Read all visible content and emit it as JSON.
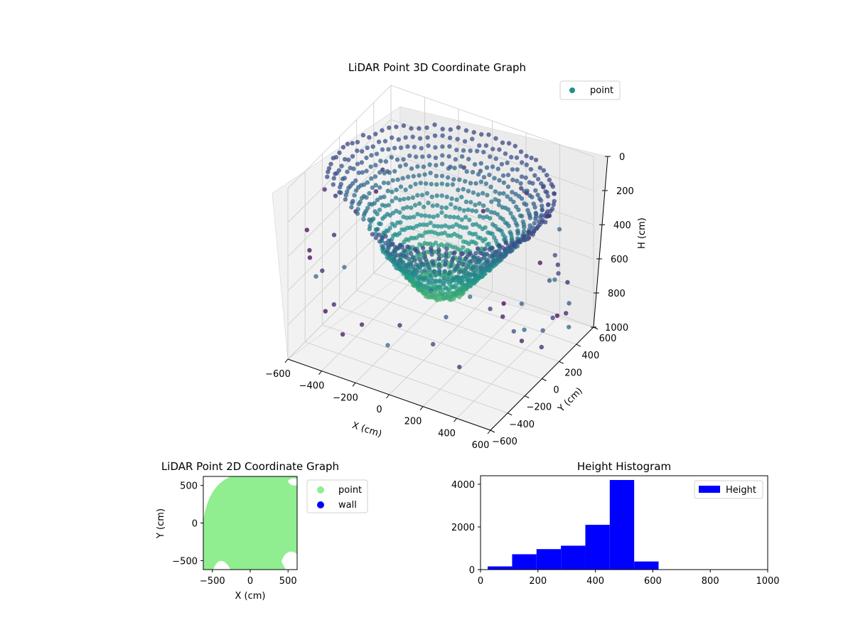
{
  "chart_data": [
    {
      "type": "scatter",
      "title": "LiDAR Point 3D Coordinate Graph",
      "xlabel": "X (cm)",
      "ylabel": "Y (cm)",
      "zlabel": "H (cm)",
      "xlim": [
        -600,
        600
      ],
      "ylim": [
        -600,
        600
      ],
      "zlim": [
        1000,
        0
      ],
      "x_ticks": [
        "−600",
        "−400",
        "−200",
        "0",
        "200",
        "400",
        "600"
      ],
      "y_ticks": [
        "−600",
        "−400",
        "−200",
        "0",
        "200",
        "400",
        "600"
      ],
      "z_ticks": [
        "0",
        "200",
        "400",
        "600",
        "800",
        "1000"
      ],
      "colormap": [
        "#440154",
        "#3b528b",
        "#21918c",
        "#5ec962"
      ],
      "legend": {
        "position": "top-right",
        "entries": [
          {
            "label": "point",
            "color": "#21918c"
          }
        ]
      },
      "grid": true
    },
    {
      "type": "scatter",
      "title": "LiDAR Point 2D Coordinate Graph",
      "xlabel": "X (cm)",
      "ylabel": "Y (cm)",
      "xlim": [
        -620,
        620
      ],
      "ylim": [
        -620,
        620
      ],
      "x_ticks": [
        "−500",
        "0",
        "500"
      ],
      "y_ticks": [
        "−500",
        "0",
        "500"
      ],
      "series": [
        {
          "name": "point",
          "color": "#90ee90"
        },
        {
          "name": "wall",
          "color": "#0000ff"
        }
      ],
      "legend": {
        "position": "outside-right"
      },
      "grid": false
    },
    {
      "type": "bar",
      "title": "Height Histogram",
      "xlabel": "",
      "ylabel": "",
      "xlim": [
        0,
        1000
      ],
      "ylim": [
        0,
        4400
      ],
      "x_ticks": [
        "0",
        "200",
        "400",
        "600",
        "800",
        "1000"
      ],
      "y_ticks": [
        "0",
        "2000",
        "4000"
      ],
      "bins": [
        {
          "x0": 25,
          "x1": 110,
          "value": 150
        },
        {
          "x0": 110,
          "x1": 195,
          "value": 720
        },
        {
          "x0": 195,
          "x1": 280,
          "value": 960
        },
        {
          "x0": 280,
          "x1": 365,
          "value": 1120
        },
        {
          "x0": 365,
          "x1": 450,
          "value": 2100
        },
        {
          "x0": 450,
          "x1": 535,
          "value": 4200
        },
        {
          "x0": 535,
          "x1": 620,
          "value": 380
        }
      ],
      "series": [
        {
          "name": "Height",
          "color": "#0000ff"
        }
      ],
      "legend": {
        "position": "top-right"
      },
      "grid": false
    }
  ]
}
